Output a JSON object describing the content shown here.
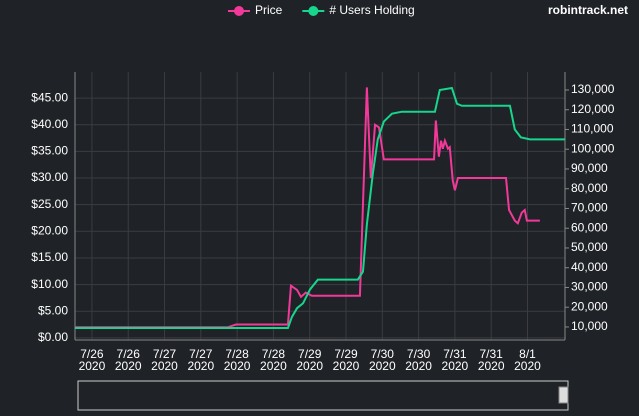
{
  "brand": "robintrack.net",
  "chart_data": {
    "type": "line",
    "legend": "top",
    "grid": true,
    "xlim": [
      -5.6,
      156.4
    ],
    "xticks": [
      {
        "value": 0,
        "label": "7/26\n2020"
      },
      {
        "value": 12,
        "label": "7/26\n2020"
      },
      {
        "value": 24,
        "label": "7/27\n2020"
      },
      {
        "value": 36,
        "label": "7/27\n2020"
      },
      {
        "value": 48,
        "label": "7/28\n2020"
      },
      {
        "value": 60,
        "label": "7/28\n2020"
      },
      {
        "value": 72,
        "label": "7/29\n2020"
      },
      {
        "value": 84,
        "label": "7/29\n2020"
      },
      {
        "value": 96,
        "label": "7/30\n2020"
      },
      {
        "value": 108,
        "label": "7/30\n2020"
      },
      {
        "value": 120,
        "label": "7/31\n2020"
      },
      {
        "value": 132,
        "label": "7/31\n2020"
      },
      {
        "value": 144,
        "label": "8/1\n2020"
      }
    ],
    "ylim": [
      -0.4,
      49.9
    ],
    "yticks": [
      {
        "value": 0,
        "label": "$0.00"
      },
      {
        "value": 5,
        "label": "$5.00"
      },
      {
        "value": 10,
        "label": "$10.00"
      },
      {
        "value": 15,
        "label": "$15.00"
      },
      {
        "value": 20,
        "label": "$20.00"
      },
      {
        "value": 25,
        "label": "$25.00"
      },
      {
        "value": 30,
        "label": "$30.00"
      },
      {
        "value": 35,
        "label": "$35.00"
      },
      {
        "value": 40,
        "label": "$40.00"
      },
      {
        "value": 45,
        "label": "$45.00"
      }
    ],
    "y2lim": [
      3400,
      139100
    ],
    "y2ticks": [
      {
        "value": 10000,
        "label": "10,000"
      },
      {
        "value": 20000,
        "label": "20,000"
      },
      {
        "value": 30000,
        "label": "30,000"
      },
      {
        "value": 40000,
        "label": "40,000"
      },
      {
        "value": 50000,
        "label": "50,000"
      },
      {
        "value": 60000,
        "label": "60,000"
      },
      {
        "value": 70000,
        "label": "70,000"
      },
      {
        "value": 80000,
        "label": "80,000"
      },
      {
        "value": 90000,
        "label": "90,000"
      },
      {
        "value": 100000,
        "label": "100,000"
      },
      {
        "value": 110000,
        "label": "110,000"
      },
      {
        "value": 120000,
        "label": "120,000"
      },
      {
        "value": 130000,
        "label": "130,000"
      }
    ],
    "series": [
      {
        "name": "Price",
        "color": "#f2399a",
        "axis": "y",
        "x": [
          -5.6,
          45,
          47.6,
          64.8,
          65.8,
          67.8,
          69.1,
          70.7,
          72.7,
          88.6,
          90.9,
          92.2,
          93.6,
          94.9,
          96.5,
          113.1,
          113.7,
          114.7,
          115.4,
          116.0,
          116.7,
          117.7,
          118.3,
          119.3,
          120.0,
          121.0,
          136.9,
          137.9,
          139.8,
          140.8,
          142.1,
          143.1,
          143.8,
          148.1
        ],
        "values": [
          2.0,
          2.0,
          2.5,
          2.5,
          9.8,
          9.0,
          7.7,
          8.5,
          7.9,
          7.9,
          47.0,
          30.0,
          40.0,
          39.5,
          33.5,
          33.5,
          40.8,
          34.0,
          37.0,
          35.5,
          37.0,
          35.5,
          35.8,
          29.5,
          27.7,
          30.0,
          30.0,
          24.0,
          22.0,
          21.5,
          23.5,
          24.0,
          22.0,
          22.0
        ]
      },
      {
        "name": "# Users Holding",
        "color": "#17d68c",
        "axis": "y2",
        "x": [
          -5.6,
          64.8,
          66.1,
          67.8,
          69.8,
          72.1,
          74.7,
          87.9,
          89.6,
          90.9,
          92.9,
          94.5,
          96.5,
          99.2,
          102.5,
          113.4,
          115.0,
          119.0,
          120.7,
          122.3,
          138.2,
          139.8,
          141.8,
          144.8,
          156.4
        ],
        "values": [
          9500,
          9500,
          15000,
          19500,
          22000,
          29000,
          34000,
          34000,
          38000,
          62000,
          88000,
          105000,
          114000,
          118000,
          119000,
          119000,
          130000,
          131000,
          123000,
          122000,
          122000,
          110000,
          106000,
          105000,
          105000
        ]
      }
    ]
  }
}
